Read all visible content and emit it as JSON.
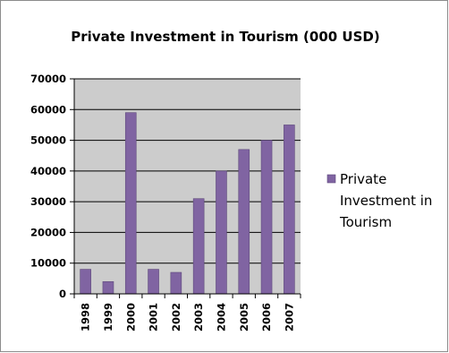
{
  "chart_data": {
    "type": "bar",
    "title": "Private Investment in Tourism (000 USD)",
    "categories": [
      "1998",
      "1999",
      "2000",
      "2001",
      "2002",
      "2003",
      "2004",
      "2005",
      "2006",
      "2007"
    ],
    "series": [
      {
        "name": "Private Investment in Tourism",
        "values": [
          8000,
          4000,
          59000,
          8000,
          7000,
          31000,
          40000,
          47000,
          50000,
          55000
        ],
        "color": "#8064a2"
      }
    ],
    "yticks": [
      "0",
      "10000",
      "20000",
      "30000",
      "40000",
      "50000",
      "60000",
      "70000"
    ],
    "ylim": [
      0,
      70000
    ],
    "legend": {
      "position": "right",
      "lines": [
        "Private",
        "Investment in",
        "Tourism"
      ]
    },
    "plot_background": "#cccccc",
    "grid": true
  }
}
